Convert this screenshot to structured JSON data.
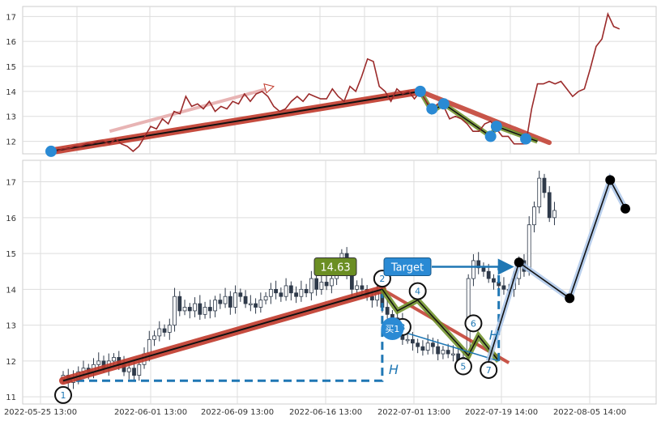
{
  "chart_data": [
    {
      "type": "line",
      "panel": "top",
      "ylim": [
        11.5,
        17.4
      ],
      "yticks": [
        12,
        13,
        14,
        15,
        16,
        17
      ],
      "grid": true,
      "series": [
        {
          "color": "#9b2a2a",
          "x": [
            0,
            2,
            4,
            6,
            8,
            10,
            12,
            14,
            16,
            18,
            20,
            22,
            24,
            26,
            28,
            30,
            32,
            34,
            36,
            38,
            40,
            42,
            44,
            46,
            48,
            50,
            52,
            54,
            56,
            58,
            60,
            62,
            64,
            66,
            68,
            70,
            72,
            74,
            76,
            78,
            80,
            82,
            84,
            86,
            88,
            90,
            92,
            94,
            96,
            98,
            100,
            102,
            104,
            106,
            108,
            110,
            112,
            114,
            116,
            118,
            120,
            122,
            124,
            126,
            128,
            130,
            132,
            134,
            136,
            138,
            140,
            142,
            144,
            146,
            148,
            150,
            152,
            154,
            156,
            158,
            160,
            162,
            164,
            166,
            168,
            170,
            172,
            174,
            176,
            178,
            180,
            182,
            184,
            186,
            188,
            190,
            192,
            194
          ],
          "y": [
            11.5,
            11.6,
            11.7,
            11.7,
            11.8,
            11.8,
            11.9,
            11.9,
            12.0,
            12.0,
            11.9,
            12.1,
            11.9,
            11.8,
            11.6,
            11.8,
            12.2,
            12.6,
            12.5,
            12.9,
            12.7,
            13.2,
            13.1,
            13.8,
            13.4,
            13.5,
            13.3,
            13.6,
            13.2,
            13.4,
            13.3,
            13.6,
            13.5,
            13.9,
            13.6,
            13.9,
            14.0,
            13.8,
            13.4,
            13.2,
            13.3,
            13.6,
            13.8,
            13.6,
            13.9,
            13.8,
            13.7,
            13.7,
            14.1,
            13.8,
            13.6,
            14.2,
            14.0,
            14.6,
            15.3,
            15.2,
            14.2,
            14.0,
            13.6,
            14.1,
            13.9,
            14.0,
            13.7,
            14.0,
            13.6,
            13.3,
            13.5,
            13.4,
            12.9,
            13.0,
            12.9,
            12.7,
            12.4,
            12.4,
            12.7,
            12.8,
            12.5,
            12.2,
            12.2,
            11.9,
            11.9,
            11.9,
            13.3,
            14.3,
            14.3,
            14.4,
            14.3,
            14.4,
            14.1,
            13.8,
            14.0,
            14.1,
            14.9,
            15.8,
            16.1,
            17.1,
            16.6,
            16.5
          ]
        }
      ],
      "overlays": {
        "trend_main": {
          "from": [
            0,
            11.6
          ],
          "to": [
            126,
            14.0
          ],
          "color": "#c0392b"
        },
        "arrow": {
          "from": [
            20,
            12.4
          ],
          "to": [
            76,
            14.2
          ],
          "color": "#e8b4b4"
        },
        "zigzag": [
          [
            126,
            14.0
          ],
          [
            130,
            13.2
          ],
          [
            134,
            13.5
          ],
          [
            150,
            12.2
          ],
          [
            152,
            12.6
          ],
          [
            166,
            12.0
          ]
        ],
        "trend_down": {
          "from": [
            126,
            14.0
          ],
          "to": [
            170,
            11.95
          ],
          "color": "#c0392b"
        },
        "markers": [
          [
            0,
            11.6
          ],
          [
            126,
            14.0
          ],
          [
            130,
            13.3
          ],
          [
            134,
            13.5
          ],
          [
            150,
            12.2
          ],
          [
            152,
            12.6
          ],
          [
            162,
            12.1
          ]
        ]
      }
    },
    {
      "type": "candlestick",
      "panel": "bottom",
      "ylim": [
        10.8,
        17.6
      ],
      "yticks": [
        11,
        12,
        13,
        14,
        15,
        16,
        17
      ],
      "grid": true,
      "x_tick_labels": [
        "2022-05-25 13:00",
        "2022-06-01 13:00",
        "2022-06-09 13:00",
        "2022-06-16 13:00",
        "2022-07-01 13:00",
        "2022-07-19 14:00",
        "2022-08-05 14:00"
      ],
      "candles_close": [
        11.6,
        11.4,
        11.5,
        11.7,
        11.8,
        11.7,
        11.9,
        12.0,
        11.8,
        12.0,
        12.1,
        11.9,
        11.7,
        11.8,
        11.6,
        11.9,
        12.2,
        12.6,
        12.7,
        12.9,
        12.8,
        13.0,
        13.8,
        13.4,
        13.5,
        13.4,
        13.6,
        13.3,
        13.5,
        13.4,
        13.7,
        13.6,
        13.8,
        13.5,
        13.9,
        13.8,
        13.6,
        13.6,
        13.5,
        13.7,
        13.8,
        14.0,
        13.9,
        13.8,
        14.1,
        13.9,
        13.8,
        14.0,
        13.9,
        14.3,
        14.0,
        14.2,
        14.1,
        14.3,
        14.6,
        15.0,
        14.4,
        14.0,
        14.1,
        14.0,
        13.8,
        13.7,
        13.9,
        13.5,
        13.3,
        13.2,
        13.1,
        12.6,
        12.6,
        12.5,
        12.4,
        12.3,
        12.5,
        12.4,
        12.2,
        12.3,
        12.2,
        12.2,
        12.0,
        12.1,
        14.3,
        14.8,
        14.6,
        14.5,
        14.3,
        14.2,
        14.1,
        14.0,
        14.0,
        14.3,
        14.8,
        14.5,
        15.8,
        16.3,
        17.1,
        16.7,
        16.0,
        16.2
      ],
      "labels": {
        "price_badge": "14.63",
        "target_badge": "Target",
        "buy_badge": "买1",
        "height_mark": "H",
        "points": [
          "1",
          "2",
          "3",
          "4",
          "5",
          "6",
          "7"
        ]
      },
      "colors": {
        "trend": "#c0392b",
        "zigzag": "#6b8e23",
        "accent_blue": "#1f77b4",
        "badge_green": "#6b8e23",
        "up_line": "#5b7fb6",
        "candle": "#2f3a4a"
      },
      "overlays": {
        "trend_main": {
          "from": [
            0,
            11.45
          ],
          "to": [
            63,
            14.0
          ]
        },
        "zigzag": [
          [
            63,
            14.0
          ],
          [
            66,
            13.4
          ],
          [
            70,
            13.7
          ],
          [
            80,
            12.15
          ],
          [
            82,
            12.7
          ],
          [
            86,
            12.0
          ]
        ],
        "trend_down": {
          "from": [
            63,
            14.0
          ],
          "to": [
            88,
            11.95
          ]
        },
        "rally": [
          [
            84,
            12.0
          ],
          [
            90,
            14.75
          ],
          [
            100,
            13.75
          ],
          [
            108,
            17.05
          ],
          [
            111,
            16.25
          ]
        ],
        "black_markers": [
          [
            90,
            14.75
          ],
          [
            100,
            13.75
          ],
          [
            108,
            17.05
          ],
          [
            111,
            16.25
          ]
        ],
        "numbered_points": [
          [
            0,
            11.05
          ],
          [
            63,
            14.3
          ],
          [
            67,
            12.95
          ],
          [
            70,
            13.95
          ],
          [
            79,
            11.85
          ],
          [
            81,
            13.05
          ],
          [
            84,
            11.75
          ]
        ],
        "buy_marker": [
          65,
          12.9
        ],
        "target_level": 14.63,
        "dashed_base": 11.45
      }
    }
  ]
}
